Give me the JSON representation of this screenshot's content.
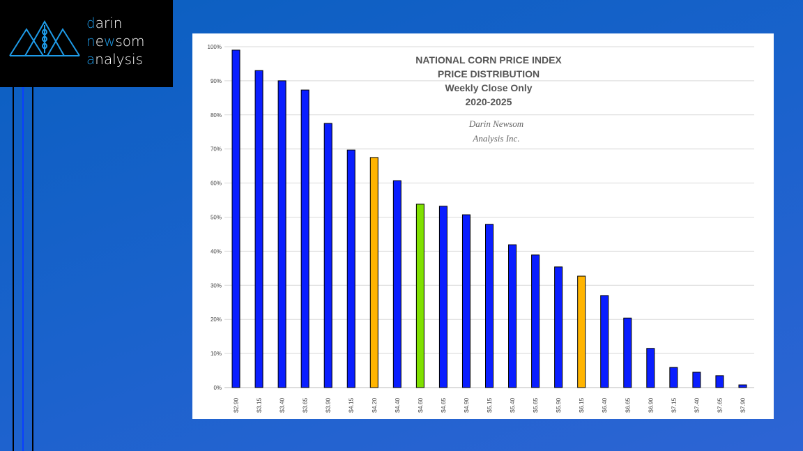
{
  "logo": {
    "line1_first": "d",
    "line1_rest": "arin",
    "line2_first": "n",
    "line2_mid1": "e",
    "line2_w": "w",
    "line2_rest": "som",
    "line3_first": "a",
    "line3_rest": "nalysis"
  },
  "colors": {
    "blue": "#0a1eff",
    "orange": "#ffb400",
    "green": "#7fe000",
    "accent": "#1e9be8"
  },
  "chart_data": {
    "type": "bar",
    "title_lines": [
      "NATIONAL CORN PRICE INDEX",
      "PRICE DISTRIBUTION",
      "Weekly Close Only",
      "2020-2025"
    ],
    "watermark": [
      "Darin Newsom",
      "Analysis Inc."
    ],
    "categories": [
      "$2.90",
      "$3.15",
      "$3.40",
      "$3.65",
      "$3.90",
      "$4.15",
      "$4.20",
      "$4.40",
      "$4.60",
      "$4.65",
      "$4.90",
      "$5.15",
      "$5.40",
      "$5.65",
      "$5.90",
      "$6.15",
      "$6.40",
      "$6.65",
      "$6.90",
      "$7.15",
      "$7.40",
      "$7.65",
      "$7.90"
    ],
    "values": [
      99.0,
      93.0,
      90.0,
      87.3,
      77.5,
      69.7,
      67.5,
      60.7,
      53.8,
      53.2,
      50.7,
      47.9,
      41.9,
      38.9,
      35.4,
      32.7,
      27.0,
      20.4,
      11.5,
      5.9,
      4.5,
      3.5,
      0.8
    ],
    "bar_colors": [
      "blue",
      "blue",
      "blue",
      "blue",
      "blue",
      "blue",
      "orange",
      "blue",
      "green",
      "blue",
      "blue",
      "blue",
      "blue",
      "blue",
      "blue",
      "orange",
      "blue",
      "blue",
      "blue",
      "blue",
      "blue",
      "blue",
      "blue"
    ],
    "yticks": [
      "0%",
      "10%",
      "20%",
      "30%",
      "40%",
      "50%",
      "60%",
      "70%",
      "80%",
      "90%",
      "100%"
    ],
    "ylim": [
      0,
      100
    ],
    "grid": true,
    "xlabel": "",
    "ylabel": ""
  }
}
